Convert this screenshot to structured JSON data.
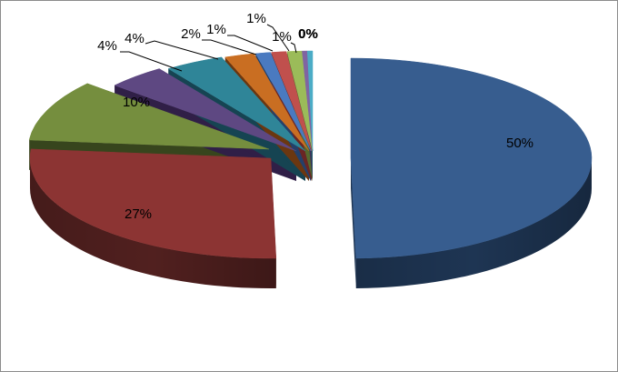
{
  "chart_data": {
    "type": "pie",
    "style": "3d-exploded",
    "slices": [
      {
        "value": 50,
        "label": "50%",
        "color": "#375d8f",
        "dark": "#1e3553"
      },
      {
        "value": 27,
        "label": "27%",
        "color": "#8c3433",
        "dark": "#51201f"
      },
      {
        "value": 10,
        "label": "10%",
        "color": "#758e3e",
        "dark": "#37451d"
      },
      {
        "value": 4,
        "label": "4%",
        "color": "#5e4882",
        "dark": "#301f47"
      },
      {
        "value": 4,
        "label": "4%",
        "color": "#2f8598",
        "dark": "#164452"
      },
      {
        "value": 2,
        "label": "2%",
        "color": "#c96e22",
        "dark": "#6b3710"
      },
      {
        "value": 1,
        "label": "1%",
        "color": "#4a7ac0",
        "dark": "#24406a"
      },
      {
        "value": 1,
        "label": "1%",
        "color": "#c0504d",
        "dark": "#6a2624"
      },
      {
        "value": 1,
        "label": "1%",
        "color": "#9bbb59",
        "dark": "#556a2e"
      },
      {
        "value": 0,
        "label": "0%",
        "color": "#8064a2",
        "dark": "#40305a"
      },
      {
        "value": 0,
        "label": "0%",
        "color": "#4bacc6",
        "dark": "#255a6a"
      }
    ],
    "legend": "none"
  }
}
